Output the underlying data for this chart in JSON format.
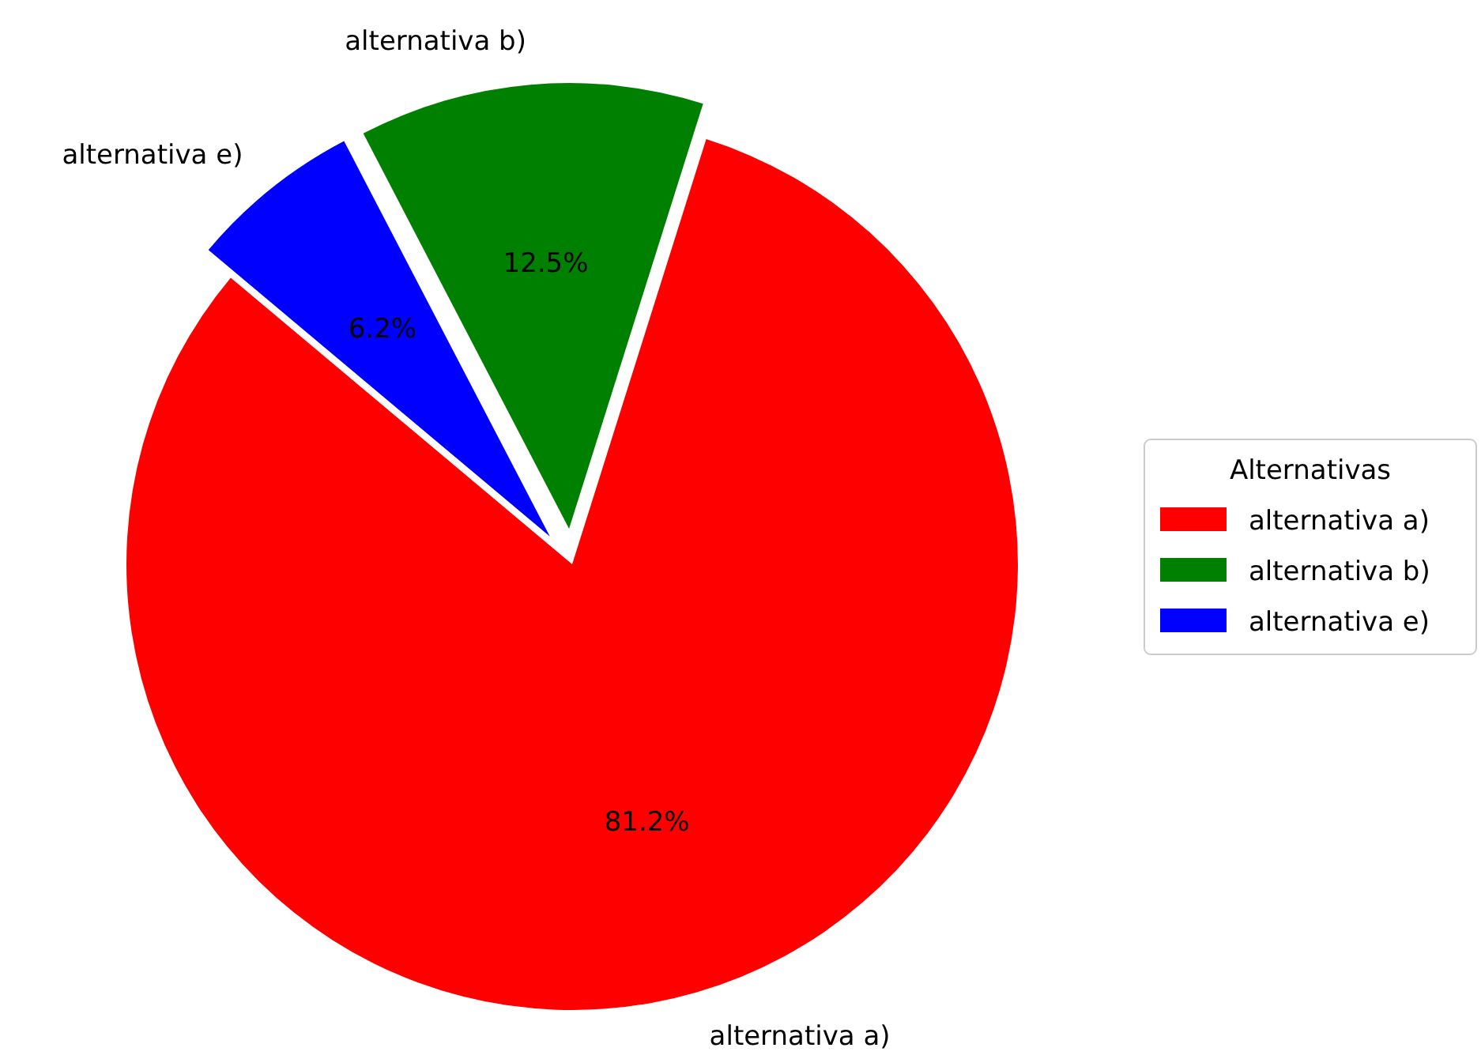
{
  "chart_data": {
    "type": "pie",
    "categories": [
      "alternativa a)",
      "alternativa b)",
      "alternativa e)"
    ],
    "values": [
      81.25,
      12.5,
      6.25
    ],
    "value_labels": [
      "81.2%",
      "12.5%",
      "6.2%"
    ],
    "colors": [
      "#ff0000",
      "#008000",
      "#0000ff"
    ],
    "legend_title": "Alternativas",
    "legend": "right"
  }
}
